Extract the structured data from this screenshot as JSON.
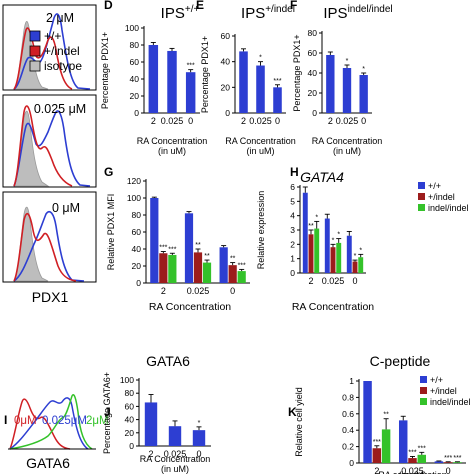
{
  "colors": {
    "wt": "#2d3ed2",
    "indel": "#9c1c1c",
    "indelindel": "#34c22a",
    "isotype": "#bdbdbd",
    "axis": "#000000"
  },
  "flow": {
    "legend": [
      {
        "label": "+/+",
        "color": "#2d3ed2"
      },
      {
        "label": "+/indel",
        "color": "#d01f24"
      },
      {
        "label": "isotype",
        "color": "#bdbdbd"
      }
    ],
    "panels": [
      {
        "label": "2 μM"
      },
      {
        "label": "0.025 μM"
      },
      {
        "label": "0 μM"
      }
    ],
    "xlabel": "PDX1"
  },
  "flowI": {
    "panel_letter": "I",
    "labels": [
      {
        "text": "0μM",
        "color": "#d01f24"
      },
      {
        "text": "0.025μM",
        "color": "#2d3ed2"
      },
      {
        "text": "2μM",
        "color": "#34c22a"
      }
    ],
    "xlabel": "GATA6"
  },
  "chart_data": [
    {
      "panel": "D",
      "type": "bar",
      "title_main": "IPS",
      "title_sup": "+/+",
      "ylabel": "Percentage PDX1+",
      "xlabel": "RA Concentration (in uM)",
      "categories": [
        "2",
        "0.025",
        "0"
      ],
      "ylim": [
        0,
        100
      ],
      "yticks": [
        0,
        20,
        40,
        60,
        80,
        100
      ],
      "values": [
        80,
        73,
        48
      ],
      "errors": [
        3,
        3,
        3
      ],
      "stars": [
        "",
        "",
        "***"
      ],
      "color": "#2d3ed2"
    },
    {
      "panel": "E",
      "type": "bar",
      "title_main": "IPS",
      "title_sup": "+/indel",
      "ylabel": "Percentage PDX1+",
      "xlabel": "RA Concentration (in uM)",
      "categories": [
        "2",
        "0.025",
        "0"
      ],
      "ylim": [
        0,
        60
      ],
      "yticks": [
        0,
        20,
        40,
        60
      ],
      "values": [
        48,
        37,
        20
      ],
      "errors": [
        2,
        3,
        2
      ],
      "stars": [
        "",
        "*",
        "***"
      ],
      "color": "#2d3ed2"
    },
    {
      "panel": "F",
      "type": "bar",
      "title_main": "IPS",
      "title_sup": "indel/indel",
      "ylabel": "Percentage PDX1+",
      "xlabel": "RA Concentration (in uM)",
      "categories": [
        "2",
        "0.025",
        "0"
      ],
      "ylim": [
        0,
        80
      ],
      "yticks": [
        0,
        20,
        40,
        60,
        80
      ],
      "values": [
        58,
        45,
        38
      ],
      "errors": [
        3,
        3,
        2
      ],
      "stars": [
        "",
        "*",
        "*"
      ],
      "color": "#2d3ed2"
    },
    {
      "panel": "G",
      "type": "bar",
      "ylabel": "Relative PDX1 MFI",
      "xlabel": "RA Concentration",
      "categories": [
        "2",
        "0.025",
        "0"
      ],
      "ylim": [
        0,
        120
      ],
      "yticks": [
        0,
        20,
        40,
        60,
        80,
        100,
        120
      ],
      "series": [
        {
          "values": [
            100,
            82,
            42
          ],
          "errors": [
            1,
            2,
            2
          ],
          "stars": [
            "",
            "",
            ""
          ]
        },
        {
          "values": [
            35,
            36,
            21
          ],
          "errors": [
            2,
            4,
            3
          ],
          "stars": [
            "***",
            "**",
            "**"
          ]
        },
        {
          "values": [
            33,
            24,
            14
          ],
          "errors": [
            2,
            3,
            2
          ],
          "stars": [
            "***",
            "**",
            "***"
          ]
        }
      ]
    },
    {
      "panel": "H",
      "type": "bar",
      "title": "GATA4",
      "ylabel": "Relative expression",
      "xlabel": "RA Concentration",
      "categories": [
        "2",
        "0.025",
        "0"
      ],
      "ylim": [
        0,
        6
      ],
      "yticks": [
        0,
        1,
        2,
        3,
        4,
        5,
        6
      ],
      "series": [
        {
          "name": "+/+",
          "values": [
            5.6,
            3.8,
            2.6
          ],
          "errors": [
            0.4,
            0.3,
            0.3
          ],
          "stars": [
            "",
            "",
            ""
          ]
        },
        {
          "name": "+/indel",
          "values": [
            2.7,
            1.8,
            0.8
          ],
          "errors": [
            0.3,
            0.2,
            0.1
          ],
          "stars": [
            "**",
            "*",
            "*"
          ]
        },
        {
          "name": "indel/indel",
          "values": [
            3.1,
            2.1,
            1.1
          ],
          "errors": [
            0.5,
            0.3,
            0.2
          ],
          "stars": [
            "*",
            "*",
            "*"
          ]
        }
      ]
    },
    {
      "panel": "J",
      "type": "bar",
      "title": "GATA6",
      "ylabel": "Percentage GATA6+",
      "xlabel": "RA Concentration (in uM)",
      "categories": [
        "2",
        "0.025",
        "0"
      ],
      "ylim": [
        0,
        100
      ],
      "yticks": [
        0,
        20,
        40,
        60,
        80,
        100
      ],
      "values": [
        66,
        30,
        24
      ],
      "errors": [
        12,
        8,
        5
      ],
      "stars": [
        "",
        "",
        "*"
      ],
      "color": "#2d3ed2"
    },
    {
      "panel": "K",
      "type": "bar",
      "title": "C-peptide",
      "ylabel": "Relative cell yield",
      "xlabel": "RA concentration (in uM)",
      "categories": [
        "2",
        "0.025",
        "0"
      ],
      "ylim": [
        0,
        1.0
      ],
      "yticks": [
        0,
        0.2,
        0.4,
        0.6,
        0.8,
        1.0
      ],
      "series": [
        {
          "name": "+/+",
          "values": [
            1.0,
            0.52,
            0.02
          ],
          "errors": [
            0,
            0.05,
            0.005
          ],
          "stars": [
            "",
            "",
            ""
          ]
        },
        {
          "name": "+/indel",
          "values": [
            0.18,
            0.06,
            0.01
          ],
          "errors": [
            0.03,
            0.02,
            0.005
          ],
          "stars": [
            "***",
            "***",
            "***"
          ]
        },
        {
          "name": "indel/indel",
          "values": [
            0.41,
            0.1,
            0.01
          ],
          "errors": [
            0.13,
            0.03,
            0.005
          ],
          "stars": [
            "**",
            "***",
            "***"
          ]
        }
      ]
    }
  ]
}
